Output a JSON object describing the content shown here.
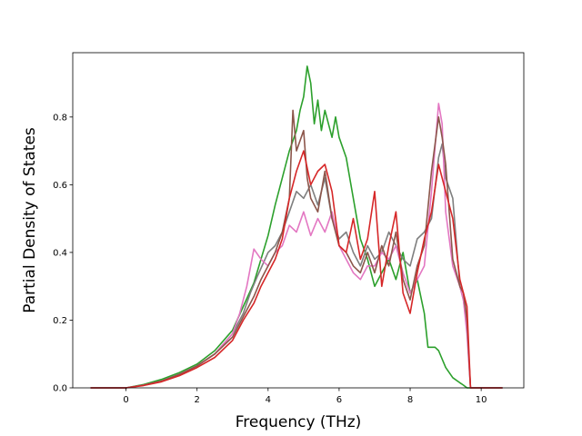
{
  "chart_data": {
    "type": "line",
    "xlabel": "Frequency (THz)",
    "ylabel": "Partial Density of States",
    "xlim": [
      -1.5,
      11.2
    ],
    "ylim": [
      0,
      0.99
    ],
    "xticks": [
      0,
      2,
      4,
      6,
      8,
      10
    ],
    "yticks": [
      0.0,
      0.2,
      0.4,
      0.6,
      0.8
    ],
    "xtick_labels": [
      "0",
      "2",
      "4",
      "6",
      "8",
      "10"
    ],
    "ytick_labels": [
      "0.0",
      "0.2",
      "0.4",
      "0.6",
      "0.8"
    ],
    "grid": false,
    "legend": "none",
    "series": [
      {
        "color": "#2ca02c",
        "x": [
          -1.0,
          0.0,
          0.5,
          1.0,
          1.5,
          2.0,
          2.5,
          3.0,
          3.3,
          3.6,
          3.8,
          4.0,
          4.2,
          4.4,
          4.6,
          4.8,
          4.9,
          5.0,
          5.1,
          5.2,
          5.3,
          5.4,
          5.5,
          5.6,
          5.7,
          5.8,
          5.9,
          6.0,
          6.2,
          6.4,
          6.6,
          6.8,
          7.0,
          7.2,
          7.4,
          7.6,
          7.8,
          8.0,
          8.2,
          8.4,
          8.5,
          8.6,
          8.7,
          8.8,
          9.0,
          9.2,
          9.4,
          9.5,
          9.6,
          10.6
        ],
        "y": [
          0.0,
          0.0,
          0.01,
          0.025,
          0.045,
          0.07,
          0.11,
          0.17,
          0.24,
          0.31,
          0.38,
          0.45,
          0.54,
          0.62,
          0.7,
          0.76,
          0.82,
          0.86,
          0.95,
          0.9,
          0.78,
          0.85,
          0.76,
          0.82,
          0.78,
          0.74,
          0.8,
          0.74,
          0.68,
          0.56,
          0.44,
          0.38,
          0.3,
          0.34,
          0.38,
          0.32,
          0.4,
          0.28,
          0.32,
          0.22,
          0.12,
          0.12,
          0.12,
          0.11,
          0.06,
          0.03,
          0.015,
          0.008,
          0.0,
          0.0
        ]
      },
      {
        "color": "#7f7f7f",
        "x": [
          -1.0,
          0.0,
          0.5,
          1.0,
          1.5,
          2.0,
          2.5,
          3.0,
          3.3,
          3.5,
          3.7,
          4.0,
          4.2,
          4.4,
          4.6,
          4.8,
          5.0,
          5.2,
          5.4,
          5.6,
          5.8,
          6.0,
          6.2,
          6.4,
          6.6,
          6.8,
          7.0,
          7.2,
          7.4,
          7.6,
          7.8,
          8.0,
          8.2,
          8.4,
          8.6,
          8.8,
          8.9,
          9.0,
          9.2,
          9.4,
          9.5,
          9.6,
          9.7,
          10.6
        ],
        "y": [
          0.0,
          0.0,
          0.008,
          0.02,
          0.04,
          0.065,
          0.1,
          0.16,
          0.22,
          0.28,
          0.33,
          0.4,
          0.42,
          0.46,
          0.52,
          0.58,
          0.56,
          0.6,
          0.54,
          0.62,
          0.5,
          0.44,
          0.46,
          0.4,
          0.36,
          0.42,
          0.38,
          0.4,
          0.46,
          0.42,
          0.38,
          0.36,
          0.44,
          0.46,
          0.5,
          0.68,
          0.72,
          0.62,
          0.56,
          0.3,
          0.26,
          0.18,
          0.0,
          0.0
        ]
      },
      {
        "color": "#e377c2",
        "x": [
          -1.0,
          0.0,
          0.5,
          1.0,
          1.5,
          2.0,
          2.5,
          3.0,
          3.2,
          3.4,
          3.6,
          3.8,
          4.0,
          4.2,
          4.4,
          4.6,
          4.8,
          5.0,
          5.2,
          5.4,
          5.6,
          5.8,
          6.0,
          6.2,
          6.4,
          6.6,
          6.8,
          7.0,
          7.2,
          7.4,
          7.6,
          7.8,
          8.0,
          8.2,
          8.4,
          8.6,
          8.8,
          8.9,
          9.0,
          9.2,
          9.4,
          9.5,
          9.6,
          9.7,
          10.6
        ],
        "y": [
          0.0,
          0.0,
          0.008,
          0.02,
          0.04,
          0.065,
          0.1,
          0.16,
          0.22,
          0.3,
          0.41,
          0.38,
          0.36,
          0.4,
          0.42,
          0.48,
          0.46,
          0.52,
          0.45,
          0.5,
          0.46,
          0.52,
          0.42,
          0.38,
          0.34,
          0.32,
          0.36,
          0.36,
          0.4,
          0.38,
          0.42,
          0.34,
          0.28,
          0.32,
          0.36,
          0.58,
          0.84,
          0.78,
          0.52,
          0.36,
          0.3,
          0.26,
          0.16,
          0.0,
          0.0
        ]
      },
      {
        "color": "#8c564b",
        "x": [
          -1.0,
          0.0,
          0.5,
          1.0,
          1.5,
          2.0,
          2.5,
          3.0,
          3.3,
          3.6,
          3.8,
          4.0,
          4.2,
          4.4,
          4.6,
          4.7,
          4.8,
          5.0,
          5.1,
          5.2,
          5.4,
          5.6,
          5.8,
          6.0,
          6.2,
          6.4,
          6.6,
          6.8,
          7.0,
          7.2,
          7.4,
          7.6,
          7.8,
          8.0,
          8.2,
          8.4,
          8.6,
          8.8,
          8.9,
          9.0,
          9.2,
          9.4,
          9.5,
          9.6,
          9.7,
          10.6
        ],
        "y": [
          0.0,
          0.0,
          0.008,
          0.02,
          0.04,
          0.065,
          0.1,
          0.15,
          0.21,
          0.27,
          0.32,
          0.36,
          0.4,
          0.46,
          0.56,
          0.82,
          0.7,
          0.76,
          0.62,
          0.56,
          0.52,
          0.64,
          0.5,
          0.42,
          0.4,
          0.36,
          0.34,
          0.4,
          0.34,
          0.42,
          0.36,
          0.46,
          0.32,
          0.26,
          0.36,
          0.42,
          0.64,
          0.8,
          0.74,
          0.66,
          0.38,
          0.3,
          0.28,
          0.2,
          0.0,
          0.0
        ]
      },
      {
        "color": "#d62728",
        "x": [
          -1.0,
          0.0,
          0.5,
          1.0,
          1.5,
          2.0,
          2.5,
          3.0,
          3.3,
          3.6,
          3.8,
          4.0,
          4.2,
          4.4,
          4.6,
          4.8,
          5.0,
          5.2,
          5.4,
          5.6,
          5.8,
          6.0,
          6.2,
          6.4,
          6.6,
          6.8,
          7.0,
          7.2,
          7.4,
          7.6,
          7.8,
          8.0,
          8.2,
          8.4,
          8.6,
          8.8,
          8.9,
          9.0,
          9.2,
          9.4,
          9.5,
          9.6,
          9.7,
          10.6
        ],
        "y": [
          0.0,
          0.0,
          0.007,
          0.018,
          0.036,
          0.06,
          0.09,
          0.14,
          0.2,
          0.25,
          0.3,
          0.34,
          0.38,
          0.44,
          0.56,
          0.64,
          0.7,
          0.6,
          0.64,
          0.66,
          0.58,
          0.42,
          0.4,
          0.5,
          0.38,
          0.44,
          0.58,
          0.3,
          0.42,
          0.52,
          0.28,
          0.22,
          0.34,
          0.44,
          0.52,
          0.66,
          0.62,
          0.58,
          0.5,
          0.32,
          0.28,
          0.24,
          0.0,
          0.0
        ]
      }
    ]
  }
}
